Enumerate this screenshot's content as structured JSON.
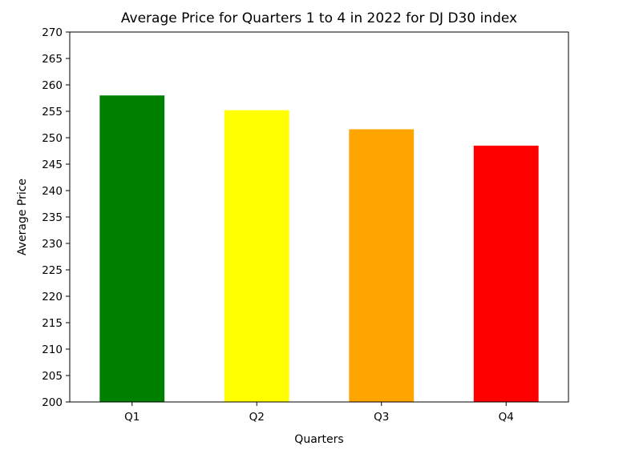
{
  "chart_data": {
    "type": "bar",
    "title": "Average Price for Quarters 1 to 4 in 2022 for DJ D30 index",
    "xlabel": "Quarters",
    "ylabel": "Average Price",
    "categories": [
      "Q1",
      "Q2",
      "Q3",
      "Q4"
    ],
    "values": [
      258.0,
      255.2,
      251.6,
      248.5
    ],
    "bar_colors": [
      "#008000",
      "#ffff00",
      "#ffa500",
      "#ff0000"
    ],
    "ylim": [
      200,
      270
    ],
    "yticks": [
      200,
      205,
      210,
      215,
      220,
      225,
      230,
      235,
      240,
      245,
      250,
      255,
      260,
      265,
      270
    ],
    "grid": false,
    "legend": "none"
  }
}
